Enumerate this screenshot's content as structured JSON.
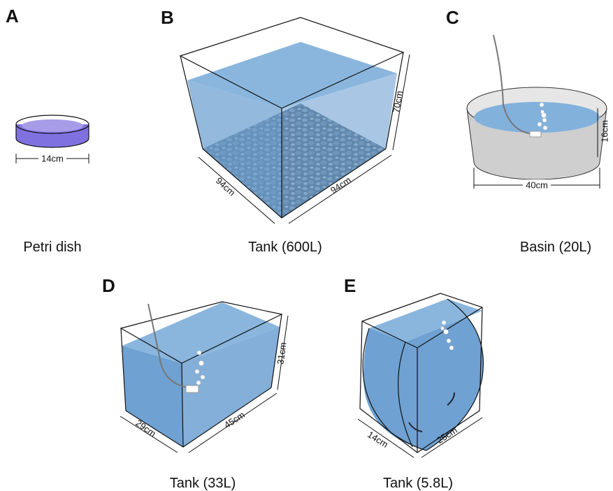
{
  "panels": [
    {
      "letter": "A",
      "caption": "Petri dish",
      "dimensions": [
        "14cm"
      ]
    },
    {
      "letter": "B",
      "caption": "Tank (600L)",
      "dimensions": [
        "94cm",
        "94cm",
        "70cm"
      ]
    },
    {
      "letter": "C",
      "caption": "Basin (20L)",
      "dimensions": [
        "40cm",
        "16cm"
      ]
    },
    {
      "letter": "D",
      "caption": "Tank (33L)",
      "dimensions": [
        "29cm",
        "45cm",
        "31cm"
      ]
    },
    {
      "letter": "E",
      "caption": "Tank (5.8L)",
      "dimensions": [
        "14cm",
        "25cm"
      ]
    }
  ]
}
